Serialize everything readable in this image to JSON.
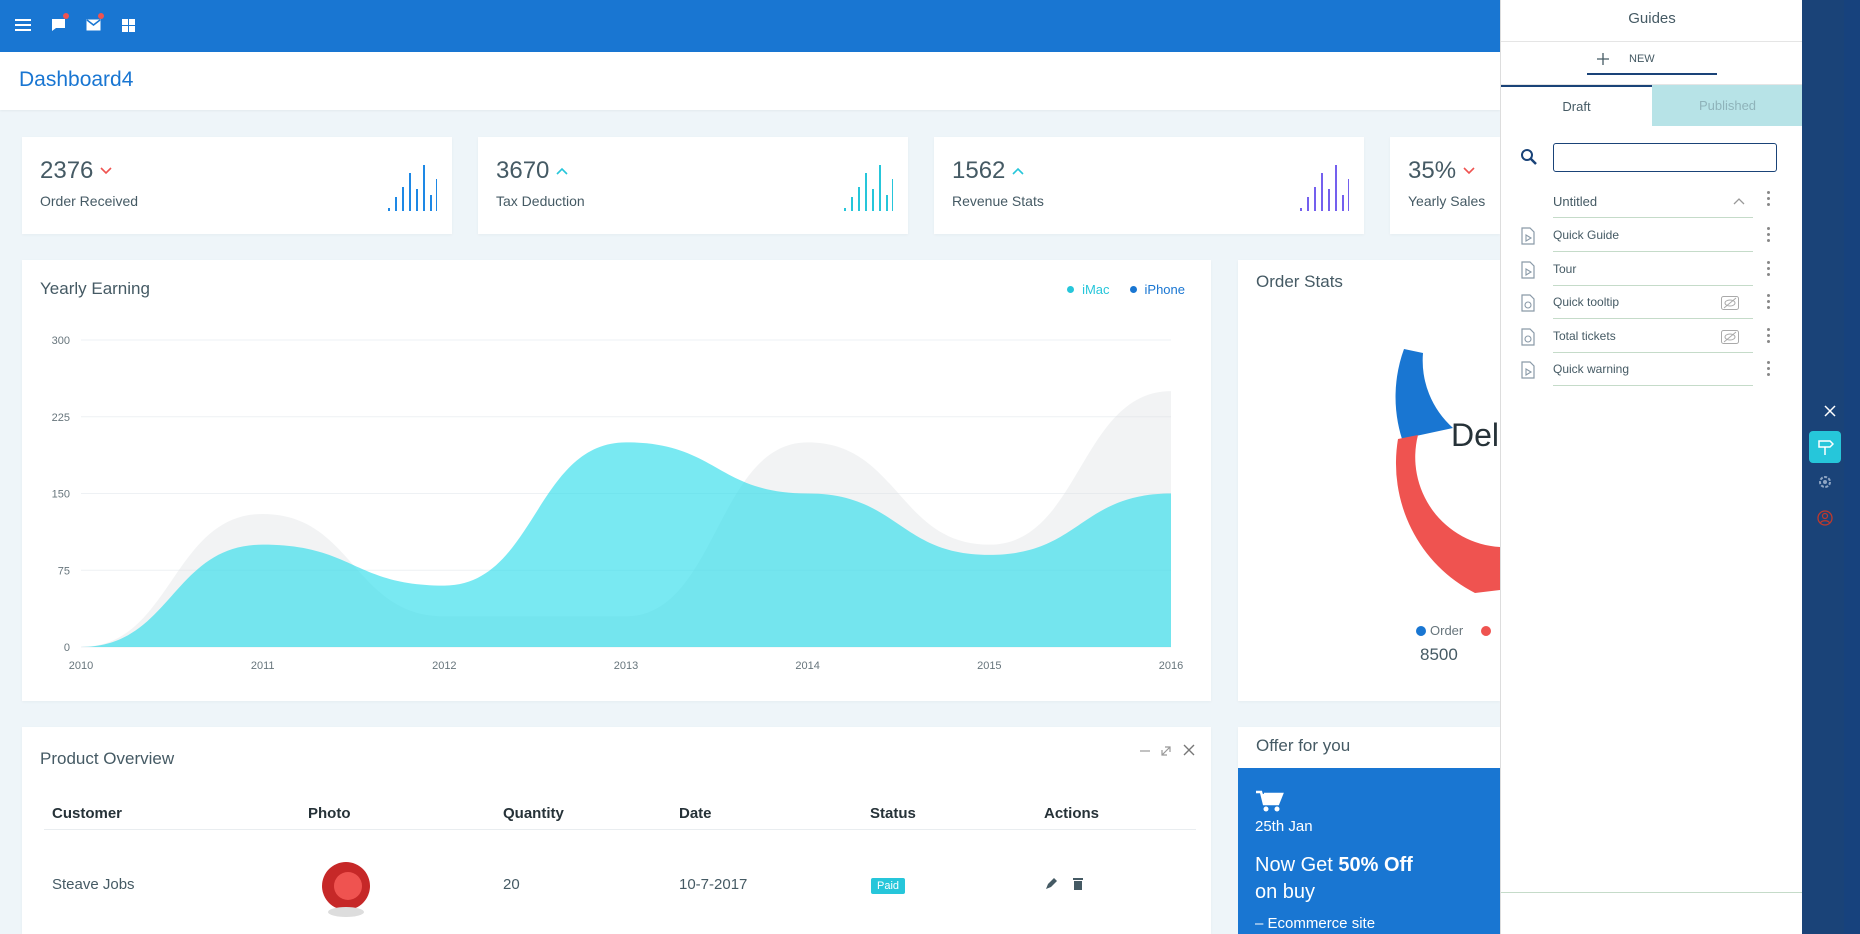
{
  "app": {
    "page_title": "Dashboard4"
  },
  "colors": {
    "topbar": "#1976d2",
    "accent_cyan": "#26c6da",
    "red": "#ef5350",
    "panel_rail": "#1a4378"
  },
  "topbar_icons": [
    "menu-icon",
    "chat-icon",
    "mail-icon",
    "grid-icon"
  ],
  "stats": [
    {
      "value": "2376",
      "label": "Order Received",
      "trend": "down"
    },
    {
      "value": "3670",
      "label": "Tax Deduction",
      "trend": "up"
    },
    {
      "value": "1562",
      "label": "Revenue Stats",
      "trend": "up"
    },
    {
      "value": "35%",
      "label": "Yearly Sales",
      "trend": "down"
    }
  ],
  "yearly": {
    "title": "Yearly Earning",
    "legend": [
      {
        "name": "iMac",
        "color": "#26c6da"
      },
      {
        "name": "iPhone",
        "color": "#1976d2"
      }
    ]
  },
  "chart_data": {
    "type": "area",
    "x": [
      "2010",
      "2011",
      "2012",
      "2013",
      "2014",
      "2015",
      "2016"
    ],
    "ylim": [
      0,
      300
    ],
    "yticks": [
      "300",
      "225",
      "150",
      "75",
      "0"
    ],
    "series": [
      {
        "name": "iMac",
        "values": [
          0,
          100,
          60,
          200,
          150,
          90,
          150
        ]
      },
      {
        "name": "iPhone",
        "values": [
          0,
          130,
          30,
          30,
          200,
          100,
          250
        ]
      }
    ]
  },
  "order_stats": {
    "title": "Order Stats",
    "center_text": "Del",
    "legend_label": "Order",
    "legend_value": "8500"
  },
  "product": {
    "title": "Product Overview",
    "headers": [
      "Customer",
      "Photo",
      "Quantity",
      "Date",
      "Status",
      "Actions"
    ],
    "row": {
      "customer": "Steave Jobs",
      "quantity": "20",
      "date": "10-7-2017",
      "status": "Paid"
    }
  },
  "offer": {
    "title": "Offer for you",
    "date": "25th Jan",
    "line1": "Now Get ",
    "bold": "50% Off",
    "line2": "on buy",
    "line3": "– Ecommerce site"
  },
  "guides": {
    "title": "Guides",
    "new_label": "NEW",
    "tabs": [
      "Draft",
      "Published"
    ],
    "group": "Untitled",
    "items": [
      {
        "name": "Quick Guide",
        "hidden": false
      },
      {
        "name": "Tour",
        "hidden": false
      },
      {
        "name": "Quick tooltip",
        "hidden": true
      },
      {
        "name": "Total tickets",
        "hidden": true
      },
      {
        "name": "Quick warning",
        "hidden": false
      }
    ]
  }
}
